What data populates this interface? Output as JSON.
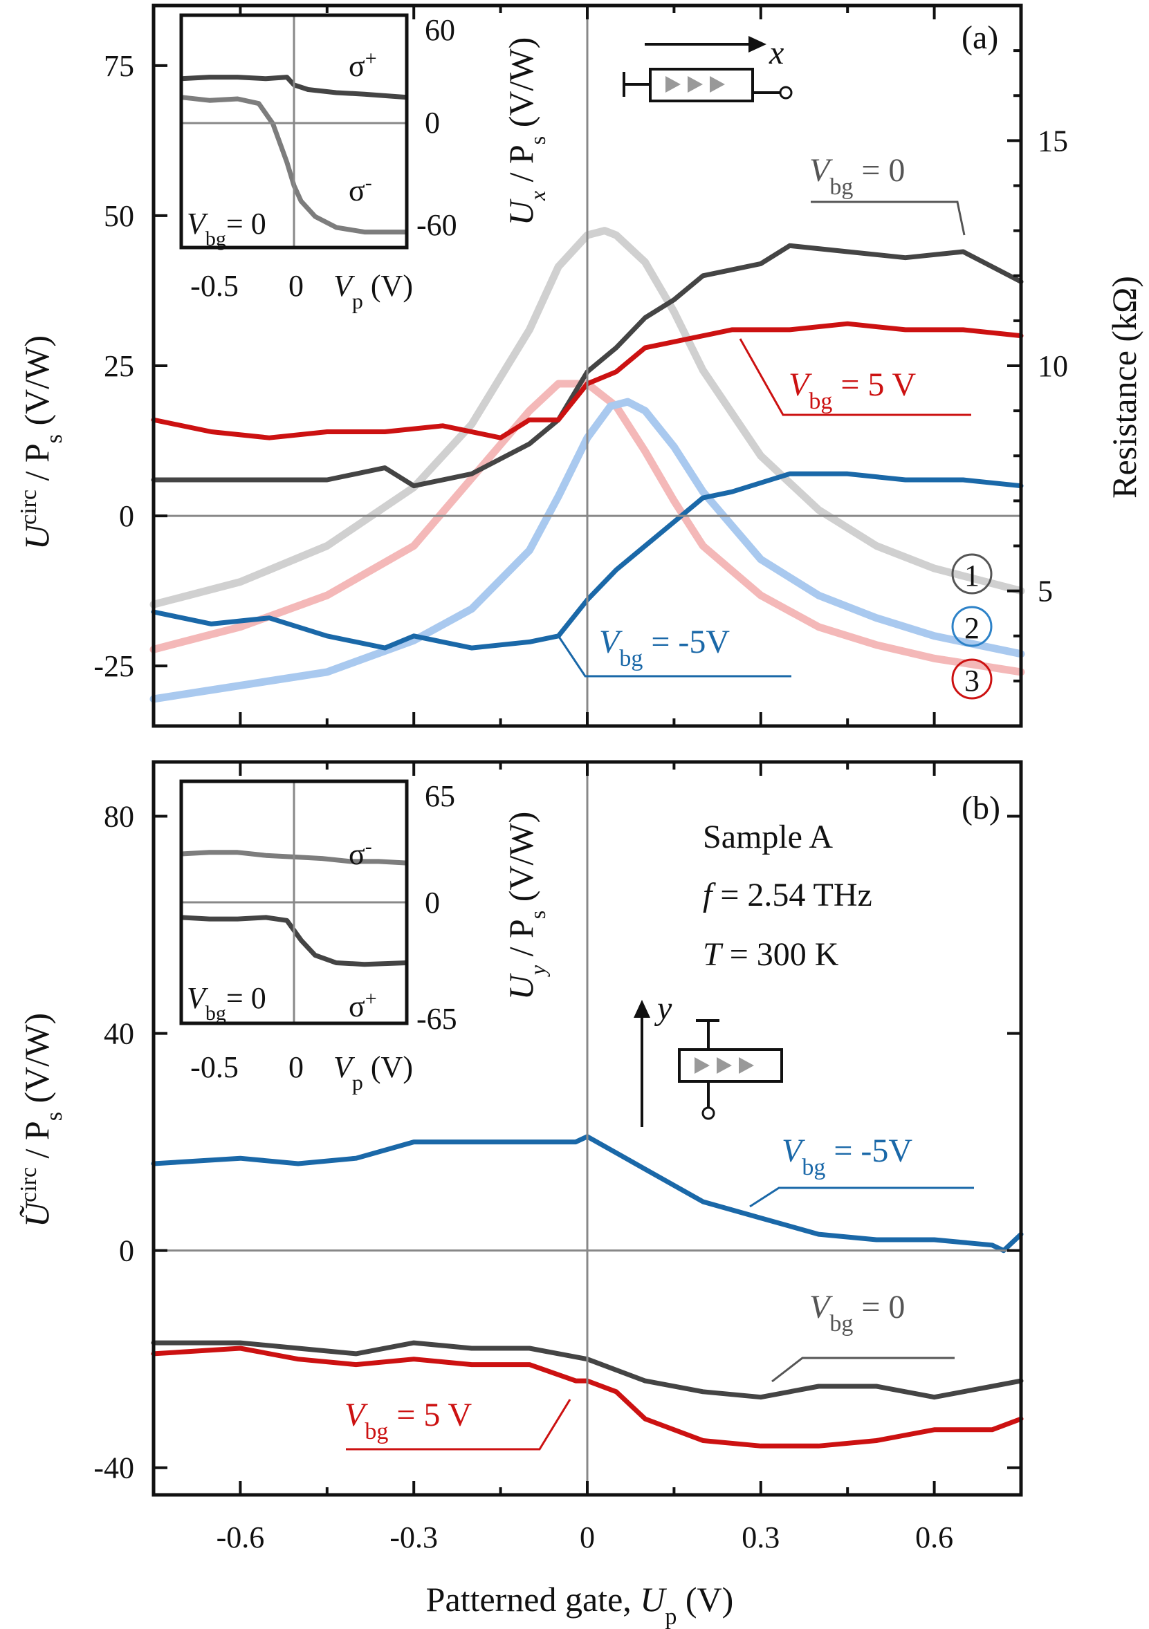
{
  "chart_data": [
    {
      "panel": "(a)",
      "type": "line",
      "ylabel_main": "U",
      "ylabel_sup": "circ",
      "ylabel_rest": " / P",
      "ylabel_sub": "s",
      "ylabel_unit": " (V/W)",
      "ylabel_right": "Resistance (kΩ)",
      "xlim": [
        -0.75,
        0.75
      ],
      "ylim": [
        -35,
        85
      ],
      "ylim_right": [
        2,
        18
      ],
      "yticks": [
        75,
        50,
        25,
        0,
        -25
      ],
      "yticks_right": [
        15,
        10,
        5
      ],
      "xticks": [
        -0.6,
        -0.3,
        0,
        0.3,
        0.6
      ],
      "series": [
        {
          "color": "#444444",
          "x": [
            -0.75,
            -0.65,
            -0.55,
            -0.45,
            -0.35,
            -0.3,
            -0.2,
            -0.1,
            -0.05,
            0,
            0.05,
            0.1,
            0.15,
            0.2,
            0.3,
            0.35,
            0.45,
            0.55,
            0.65,
            0.75
          ],
          "y": [
            6,
            6,
            6,
            6,
            8,
            5,
            7,
            12,
            16,
            24,
            28,
            33,
            36,
            40,
            42,
            45,
            44,
            43,
            44,
            39
          ]
        },
        {
          "color": "#cc1111",
          "x": [
            -0.75,
            -0.65,
            -0.55,
            -0.45,
            -0.35,
            -0.25,
            -0.15,
            -0.1,
            -0.05,
            0,
            0.05,
            0.1,
            0.15,
            0.25,
            0.35,
            0.45,
            0.55,
            0.65,
            0.75
          ],
          "y": [
            16,
            14,
            13,
            14,
            14,
            15,
            13,
            16,
            16,
            22,
            24,
            28,
            29,
            31,
            31,
            32,
            31,
            31,
            30
          ]
        },
        {
          "color": "#1a68a8",
          "x": [
            -0.75,
            -0.65,
            -0.55,
            -0.45,
            -0.35,
            -0.3,
            -0.2,
            -0.1,
            -0.05,
            0,
            0.05,
            0.1,
            0.15,
            0.2,
            0.25,
            0.35,
            0.45,
            0.55,
            0.65,
            0.75
          ],
          "y": [
            -16,
            -18,
            -17,
            -20,
            -22,
            -20,
            -22,
            -21,
            -20,
            -14,
            -9,
            -5,
            -1,
            3,
            4,
            7,
            7,
            6,
            6,
            5
          ]
        },
        {
          "color": "#d0d0d0",
          "axis": "right",
          "x": [
            -0.75,
            -0.6,
            -0.45,
            -0.3,
            -0.2,
            -0.1,
            -0.05,
            0,
            0.03,
            0.05,
            0.1,
            0.15,
            0.2,
            0.3,
            0.4,
            0.5,
            0.6,
            0.75
          ],
          "y": [
            4.7,
            5.2,
            6.0,
            7.3,
            8.7,
            10.8,
            12.2,
            12.9,
            13.0,
            12.9,
            12.3,
            11.2,
            9.9,
            8.0,
            6.8,
            6.0,
            5.5,
            5.0
          ]
        },
        {
          "color": "#f4b8b8",
          "axis": "right",
          "x": [
            -0.75,
            -0.6,
            -0.45,
            -0.3,
            -0.2,
            -0.1,
            -0.05,
            0,
            0.05,
            0.1,
            0.15,
            0.2,
            0.3,
            0.4,
            0.5,
            0.6,
            0.75
          ],
          "y": [
            3.7,
            4.2,
            4.9,
            6.0,
            7.5,
            9.0,
            9.6,
            9.6,
            9.1,
            8.1,
            7.0,
            6.0,
            4.9,
            4.2,
            3.8,
            3.5,
            3.2
          ]
        },
        {
          "color": "#a9c9ef",
          "axis": "right",
          "x": [
            -0.75,
            -0.6,
            -0.45,
            -0.3,
            -0.2,
            -0.1,
            -0.05,
            0,
            0.04,
            0.07,
            0.1,
            0.15,
            0.2,
            0.3,
            0.4,
            0.5,
            0.6,
            0.75
          ],
          "y": [
            2.6,
            2.9,
            3.2,
            3.9,
            4.6,
            5.9,
            7.1,
            8.4,
            9.1,
            9.2,
            9.0,
            8.2,
            7.2,
            5.7,
            4.9,
            4.4,
            4.0,
            3.6
          ]
        }
      ],
      "annotations": [
        {
          "main": "V",
          "sub": "bg",
          "rest": " = 0",
          "color": "#555555"
        },
        {
          "main": "V",
          "sub": "bg",
          "rest": " = 5 V",
          "color": "#cc1111"
        },
        {
          "main": "V",
          "sub": "bg",
          "rest": " = -5V",
          "color": "#1a68a8"
        }
      ],
      "circle_labels": [
        {
          "text": "1",
          "color": "#555555"
        },
        {
          "text": "2",
          "color": "#2d82c8"
        },
        {
          "text": "3",
          "color": "#cc1111"
        }
      ],
      "panel_label": "(a)",
      "diagram_axis": "x",
      "inset": {
        "ylabel_main": "U",
        "ylabel_sub": "x",
        "ylabel_rest": " / P",
        "ylabel_sub2": "s",
        "ylabel_unit": " (V/W)",
        "yticks": [
          60,
          0,
          -60
        ],
        "xticks": [
          "-0.5",
          "0"
        ],
        "xlabel_main": "V",
        "xlabel_sub": "p",
        "xlabel_unit": " (V)",
        "text_main": "V",
        "text_sub": "bg",
        "text_rest": "= 0",
        "sigma_top": "σ",
        "sigma_top_sup": "+",
        "sigma_bot": "σ",
        "sigma_bot_sup": "-",
        "xlim": [
          -0.8,
          0.8
        ],
        "ylim": [
          -75,
          75
        ],
        "series": [
          {
            "color": "#444444",
            "x": [
              -0.8,
              -0.6,
              -0.4,
              -0.2,
              -0.05,
              0,
              0.1,
              0.3,
              0.5,
              0.8
            ],
            "y": [
              34,
              35,
              35,
              34,
              35,
              30,
              27,
              25,
              24,
              22
            ]
          },
          {
            "color": "#7d7d7d",
            "x": [
              -0.8,
              -0.6,
              -0.4,
              -0.25,
              -0.15,
              -0.05,
              0,
              0.05,
              0.15,
              0.3,
              0.5,
              0.8
            ],
            "y": [
              22,
              20,
              21,
              18,
              5,
              -20,
              -35,
              -45,
              -55,
              -62,
              -65,
              -65
            ]
          }
        ]
      }
    },
    {
      "panel": "(b)",
      "type": "line",
      "ylabel_main": "Ũ",
      "ylabel_sup": "circ",
      "ylabel_rest": " / P",
      "ylabel_sub": "s",
      "ylabel_unit": " (V/W)",
      "xlabel_main": "Patterned gate, ",
      "xlabel_var": "U",
      "xlabel_sub": "p",
      "xlabel_unit": " (V)",
      "xlim": [
        -0.75,
        0.75
      ],
      "ylim": [
        -45,
        90
      ],
      "yticks": [
        80,
        40,
        0,
        -40
      ],
      "xticks": [
        "-0.6",
        "-0.3",
        "0",
        "0.3",
        "0.6"
      ],
      "xticks_values": [
        -0.6,
        -0.3,
        0,
        0.3,
        0.6
      ],
      "series": [
        {
          "color": "#1a68a8",
          "x": [
            -0.75,
            -0.6,
            -0.5,
            -0.4,
            -0.3,
            -0.2,
            -0.1,
            -0.02,
            0,
            0.05,
            0.1,
            0.2,
            0.3,
            0.4,
            0.5,
            0.6,
            0.7,
            0.72,
            0.75
          ],
          "y": [
            16,
            17,
            16,
            17,
            20,
            20,
            20,
            20,
            21,
            18,
            15,
            9,
            6,
            3,
            2,
            2,
            1,
            0,
            3
          ]
        },
        {
          "color": "#444444",
          "x": [
            -0.75,
            -0.6,
            -0.5,
            -0.4,
            -0.3,
            -0.2,
            -0.1,
            0,
            0.1,
            0.2,
            0.3,
            0.4,
            0.5,
            0.6,
            0.7,
            0.75
          ],
          "y": [
            -17,
            -17,
            -18,
            -19,
            -17,
            -18,
            -18,
            -20,
            -24,
            -26,
            -27,
            -25,
            -25,
            -27,
            -25,
            -24
          ]
        },
        {
          "color": "#cc1111",
          "x": [
            -0.75,
            -0.6,
            -0.5,
            -0.4,
            -0.3,
            -0.2,
            -0.1,
            -0.02,
            0,
            0.05,
            0.1,
            0.2,
            0.3,
            0.4,
            0.5,
            0.6,
            0.7,
            0.75
          ],
          "y": [
            -19,
            -18,
            -20,
            -21,
            -20,
            -21,
            -21,
            -24,
            -24,
            -26,
            -31,
            -35,
            -36,
            -36,
            -35,
            -33,
            -33,
            -31
          ]
        }
      ],
      "annotations": [
        {
          "main": "V",
          "sub": "bg",
          "rest": " = -5V",
          "color": "#1a68a8"
        },
        {
          "main": "V",
          "sub": "bg",
          "rest": " = 0",
          "color": "#555555"
        },
        {
          "main": "V",
          "sub": "bg",
          "rest": " = 5 V",
          "color": "#cc1111"
        }
      ],
      "panel_label": "(b)",
      "sample_text": "Sample A",
      "freq": {
        "main": "f",
        "rest": " = 2.54 THz"
      },
      "temp": {
        "main": "T",
        "rest": " = 300 K"
      },
      "diagram_axis": "y",
      "inset": {
        "ylabel_main": "U",
        "ylabel_sub": "y",
        "ylabel_rest": " / P",
        "ylabel_sub2": "s",
        "ylabel_unit": " (V/W)",
        "yticks": [
          65,
          0,
          -65
        ],
        "xticks": [
          "-0.5",
          "0"
        ],
        "xlabel_main": "V",
        "xlabel_sub": "p",
        "xlabel_unit": " (V)",
        "text_main": "V",
        "text_sub": "bg",
        "text_rest": "= 0",
        "sigma_top": "σ",
        "sigma_top_sup": "-",
        "sigma_bot": "σ",
        "sigma_bot_sup": "+",
        "xlim": [
          -0.8,
          0.8
        ],
        "ylim": [
          -80,
          80
        ],
        "series": [
          {
            "color": "#7d7d7d",
            "x": [
              -0.8,
              -0.6,
              -0.4,
              -0.2,
              0,
              0.2,
              0.4,
              0.6,
              0.8
            ],
            "y": [
              32,
              33,
              33,
              31,
              30,
              29,
              27,
              27,
              26
            ]
          },
          {
            "color": "#444444",
            "x": [
              -0.8,
              -0.6,
              -0.4,
              -0.2,
              -0.05,
              0.05,
              0.15,
              0.3,
              0.5,
              0.8
            ],
            "y": [
              -10,
              -11,
              -11,
              -10,
              -12,
              -25,
              -35,
              -40,
              -41,
              -40
            ]
          }
        ]
      }
    }
  ]
}
